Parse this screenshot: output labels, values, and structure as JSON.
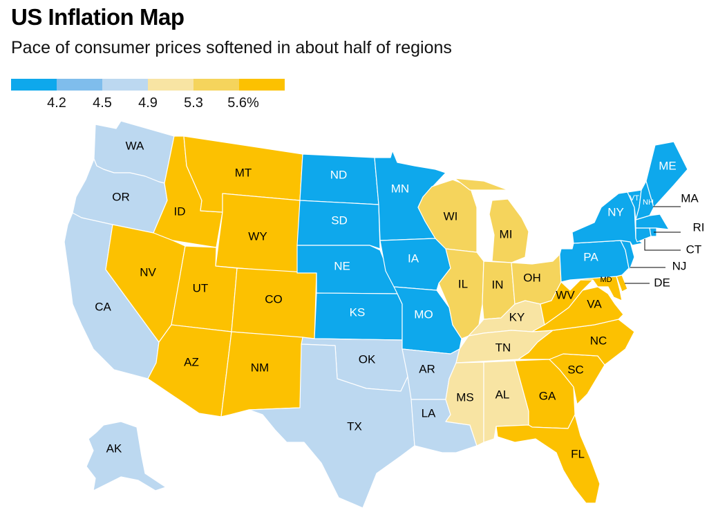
{
  "header": {
    "title": "US Inflation Map",
    "subtitle": "Pace of consumer prices softened in about half of regions"
  },
  "colors": {
    "bucket1": "#0ea8ec",
    "bucket2": "#7fbdec",
    "bucket3": "#bcd8f0",
    "bucket4": "#f8e4a3",
    "bucket5": "#f5d45c",
    "bucket6": "#fcc101"
  },
  "legend": {
    "buckets": [
      "bucket1",
      "bucket2",
      "bucket3",
      "bucket4",
      "bucket5",
      "bucket6"
    ],
    "breaks": [
      "4.2",
      "4.5",
      "4.9",
      "5.3",
      "5.6%"
    ]
  },
  "chart_data": {
    "type": "choropleth",
    "title": "US Inflation Map",
    "subtitle": "Pace of consumer prices softened in about half of regions",
    "legend_breaks": [
      "4.2",
      "4.5",
      "4.9",
      "5.3",
      "5.6%"
    ],
    "states": [
      {
        "abbr": "WA",
        "bucket": "bucket3"
      },
      {
        "abbr": "OR",
        "bucket": "bucket3"
      },
      {
        "abbr": "CA",
        "bucket": "bucket3"
      },
      {
        "abbr": "AK",
        "bucket": "bucket3"
      },
      {
        "abbr": "ID",
        "bucket": "bucket6"
      },
      {
        "abbr": "MT",
        "bucket": "bucket6"
      },
      {
        "abbr": "WY",
        "bucket": "bucket6"
      },
      {
        "abbr": "NV",
        "bucket": "bucket6"
      },
      {
        "abbr": "UT",
        "bucket": "bucket6"
      },
      {
        "abbr": "CO",
        "bucket": "bucket6"
      },
      {
        "abbr": "AZ",
        "bucket": "bucket6"
      },
      {
        "abbr": "NM",
        "bucket": "bucket6"
      },
      {
        "abbr": "ND",
        "bucket": "bucket1"
      },
      {
        "abbr": "SD",
        "bucket": "bucket1"
      },
      {
        "abbr": "NE",
        "bucket": "bucket1"
      },
      {
        "abbr": "KS",
        "bucket": "bucket1"
      },
      {
        "abbr": "MN",
        "bucket": "bucket1"
      },
      {
        "abbr": "IA",
        "bucket": "bucket1"
      },
      {
        "abbr": "MO",
        "bucket": "bucket1"
      },
      {
        "abbr": "OK",
        "bucket": "bucket3"
      },
      {
        "abbr": "TX",
        "bucket": "bucket3"
      },
      {
        "abbr": "AR",
        "bucket": "bucket3"
      },
      {
        "abbr": "LA",
        "bucket": "bucket3"
      },
      {
        "abbr": "WI",
        "bucket": "bucket5"
      },
      {
        "abbr": "MI",
        "bucket": "bucket5"
      },
      {
        "abbr": "IL",
        "bucket": "bucket5"
      },
      {
        "abbr": "IN",
        "bucket": "bucket5"
      },
      {
        "abbr": "OH",
        "bucket": "bucket5"
      },
      {
        "abbr": "KY",
        "bucket": "bucket4"
      },
      {
        "abbr": "TN",
        "bucket": "bucket4"
      },
      {
        "abbr": "MS",
        "bucket": "bucket4"
      },
      {
        "abbr": "AL",
        "bucket": "bucket4"
      },
      {
        "abbr": "WV",
        "bucket": "bucket6"
      },
      {
        "abbr": "VA",
        "bucket": "bucket6"
      },
      {
        "abbr": "NC",
        "bucket": "bucket6"
      },
      {
        "abbr": "SC",
        "bucket": "bucket6"
      },
      {
        "abbr": "GA",
        "bucket": "bucket6"
      },
      {
        "abbr": "FL",
        "bucket": "bucket6"
      },
      {
        "abbr": "MD",
        "bucket": "bucket6"
      },
      {
        "abbr": "DE",
        "bucket": "bucket6"
      },
      {
        "abbr": "PA",
        "bucket": "bucket1"
      },
      {
        "abbr": "NY",
        "bucket": "bucket1"
      },
      {
        "abbr": "NJ",
        "bucket": "bucket1"
      },
      {
        "abbr": "VT",
        "bucket": "bucket1"
      },
      {
        "abbr": "NH",
        "bucket": "bucket1"
      },
      {
        "abbr": "ME",
        "bucket": "bucket1"
      },
      {
        "abbr": "MA",
        "bucket": "bucket1"
      },
      {
        "abbr": "RI",
        "bucket": "bucket1"
      },
      {
        "abbr": "CT",
        "bucket": "bucket1"
      }
    ]
  }
}
